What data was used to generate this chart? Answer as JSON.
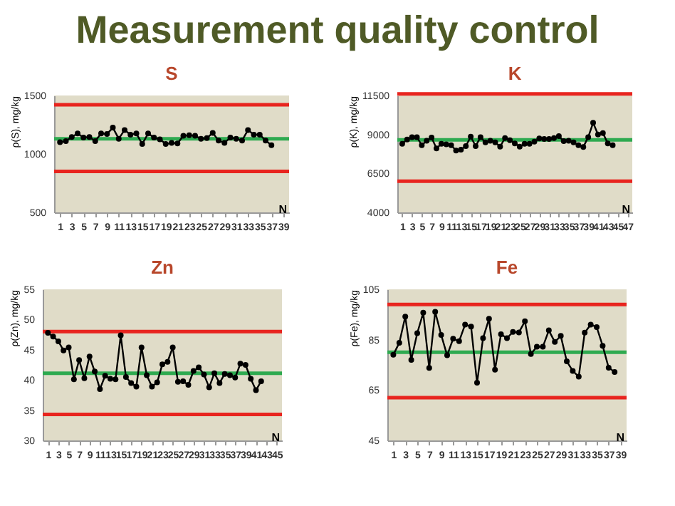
{
  "chart_data": [
    {
      "type": "other",
      "title": "Measurement quality control"
    },
    {
      "type": "line",
      "title": "S",
      "xlabel": "N",
      "ylabel": "ρ(S), mg/kg",
      "marker": "circle",
      "grid": false,
      "x": [
        1,
        2,
        3,
        4,
        5,
        6,
        7,
        8,
        9,
        10,
        11,
        12,
        13,
        14,
        15,
        16,
        17,
        18,
        19,
        20,
        21,
        22,
        23,
        24,
        25,
        26,
        27,
        28,
        29,
        30,
        31,
        32,
        33,
        34,
        35,
        36,
        37
      ],
      "series": [
        {
          "color": "#000000",
          "values": [
            1100,
            1110,
            1145,
            1175,
            1140,
            1145,
            1110,
            1175,
            1170,
            1225,
            1130,
            1205,
            1165,
            1175,
            1085,
            1175,
            1140,
            1125,
            1085,
            1095,
            1090,
            1155,
            1160,
            1155,
            1130,
            1135,
            1180,
            1115,
            1095,
            1140,
            1130,
            1115,
            1205,
            1165,
            1165,
            1115,
            1075
          ]
        }
      ],
      "xlim": [
        0,
        40
      ],
      "xticks": [
        1,
        3,
        5,
        7,
        9,
        11,
        13,
        15,
        17,
        19,
        21,
        23,
        25,
        27,
        29,
        31,
        33,
        35,
        37,
        39
      ],
      "ylim": [
        500,
        1500
      ],
      "yticks": [
        500,
        1000,
        1500
      ],
      "ref_lines": [
        {
          "axis": "y",
          "value": 1420,
          "color": "#e8251f"
        },
        {
          "axis": "y",
          "value": 850,
          "color": "#e8251f"
        },
        {
          "axis": "y",
          "value": 1130,
          "color": "#2eaa50"
        }
      ]
    },
    {
      "type": "line",
      "title": "K",
      "xlabel": "N",
      "ylabel": "ρ(K), mg/kg",
      "marker": "circle",
      "grid": false,
      "x": [
        1,
        2,
        3,
        4,
        5,
        6,
        7,
        8,
        9,
        10,
        11,
        12,
        13,
        14,
        15,
        16,
        17,
        18,
        19,
        20,
        21,
        22,
        23,
        24,
        25,
        26,
        27,
        28,
        29,
        30,
        31,
        32,
        33,
        34,
        35,
        36,
        37,
        38,
        39,
        40,
        41,
        42,
        43,
        44
      ],
      "series": [
        {
          "color": "#000000",
          "values": [
            8400,
            8680,
            8830,
            8830,
            8310,
            8600,
            8800,
            8110,
            8400,
            8370,
            8310,
            7970,
            8030,
            8250,
            8860,
            8250,
            8830,
            8490,
            8600,
            8490,
            8220,
            8770,
            8630,
            8430,
            8220,
            8400,
            8400,
            8540,
            8740,
            8710,
            8710,
            8770,
            8890,
            8570,
            8600,
            8490,
            8310,
            8200,
            8830,
            9750,
            9000,
            9090,
            8430,
            8310
          ]
        }
      ],
      "xlim": [
        0,
        48
      ],
      "xticks": [
        1,
        3,
        5,
        7,
        9,
        11,
        13,
        15,
        17,
        19,
        21,
        23,
        25,
        27,
        29,
        31,
        33,
        35,
        37,
        39,
        41,
        43,
        45,
        47
      ],
      "ylim": [
        4000,
        11500
      ],
      "yticks": [
        4000,
        6500,
        9000,
        11500
      ],
      "ref_lines": [
        {
          "axis": "y",
          "value": 11600,
          "color": "#e8251f"
        },
        {
          "axis": "y",
          "value": 6000,
          "color": "#e8251f"
        },
        {
          "axis": "y",
          "value": 8650,
          "color": "#2eaa50"
        }
      ]
    },
    {
      "type": "line",
      "title": "Zn",
      "xlabel": "N",
      "ylabel": "ρ(Zn), mg/kg",
      "marker": "circle",
      "grid": false,
      "x": [
        1,
        2,
        3,
        4,
        5,
        6,
        7,
        8,
        9,
        10,
        11,
        12,
        13,
        14,
        15,
        16,
        17,
        18,
        19,
        20,
        21,
        22,
        23,
        24,
        25,
        26,
        27,
        28,
        29,
        30,
        31,
        32,
        33,
        34,
        35,
        36,
        37,
        38,
        39,
        40,
        41,
        42
      ],
      "series": [
        {
          "color": "#000000",
          "values": [
            47.8,
            47.2,
            46.4,
            44.9,
            45.4,
            40.1,
            43.3,
            40.3,
            43.9,
            41.4,
            38.5,
            40.7,
            40.2,
            40.1,
            47.4,
            40.5,
            39.5,
            38.9,
            45.4,
            40.8,
            38.9,
            39.6,
            42.6,
            43.0,
            45.4,
            39.7,
            39.8,
            39.2,
            41.5,
            42.1,
            40.9,
            38.8,
            41.1,
            39.5,
            41.0,
            40.8,
            40.4,
            42.7,
            42.5,
            40.2,
            38.3,
            39.8
          ]
        }
      ],
      "xlim": [
        0,
        46
      ],
      "xticks": [
        1,
        3,
        5,
        7,
        9,
        11,
        13,
        15,
        17,
        19,
        21,
        23,
        25,
        27,
        29,
        31,
        33,
        35,
        37,
        39,
        41,
        43,
        45
      ],
      "ylim": [
        30,
        55
      ],
      "yticks": [
        30,
        35,
        40,
        45,
        50,
        55
      ],
      "ref_lines": [
        {
          "axis": "y",
          "value": 48,
          "color": "#e8251f"
        },
        {
          "axis": "y",
          "value": 34.3,
          "color": "#e8251f"
        },
        {
          "axis": "y",
          "value": 41.1,
          "color": "#2eaa50"
        }
      ]
    },
    {
      "type": "line",
      "title": "Fe",
      "xlabel": "N",
      "ylabel": "ρ(Fe), mg/kg",
      "marker": "circle",
      "grid": false,
      "x": [
        1,
        2,
        3,
        4,
        5,
        6,
        7,
        8,
        9,
        10,
        11,
        12,
        13,
        14,
        15,
        16,
        17,
        18,
        19,
        20,
        21,
        22,
        23,
        24,
        25,
        26,
        27,
        28,
        29,
        30,
        31,
        32,
        33,
        34,
        35,
        36,
        37,
        38
      ],
      "series": [
        {
          "color": "#000000",
          "values": [
            79.0,
            83.8,
            94.2,
            77.0,
            87.6,
            95.7,
            73.8,
            96.1,
            86.9,
            78.8,
            85.4,
            84.4,
            91.0,
            90.2,
            67.9,
            85.6,
            93.3,
            73.1,
            87.2,
            85.6,
            88.1,
            87.9,
            92.3,
            79.3,
            82.2,
            82.2,
            88.7,
            84.1,
            86.5,
            76.4,
            72.6,
            70.3,
            87.8,
            91.0,
            90.0,
            82.6,
            73.9,
            72.2
          ]
        }
      ],
      "xlim": [
        0,
        40
      ],
      "xticks": [
        1,
        3,
        5,
        7,
        9,
        11,
        13,
        15,
        17,
        19,
        21,
        23,
        25,
        27,
        29,
        31,
        33,
        35,
        37,
        39
      ],
      "ylim": [
        45,
        105
      ],
      "yticks": [
        45,
        65,
        85,
        105
      ],
      "ref_lines": [
        {
          "axis": "y",
          "value": 99,
          "color": "#e8251f"
        },
        {
          "axis": "y",
          "value": 62,
          "color": "#e8251f"
        },
        {
          "axis": "y",
          "value": 80,
          "color": "#2eaa50"
        }
      ]
    }
  ]
}
